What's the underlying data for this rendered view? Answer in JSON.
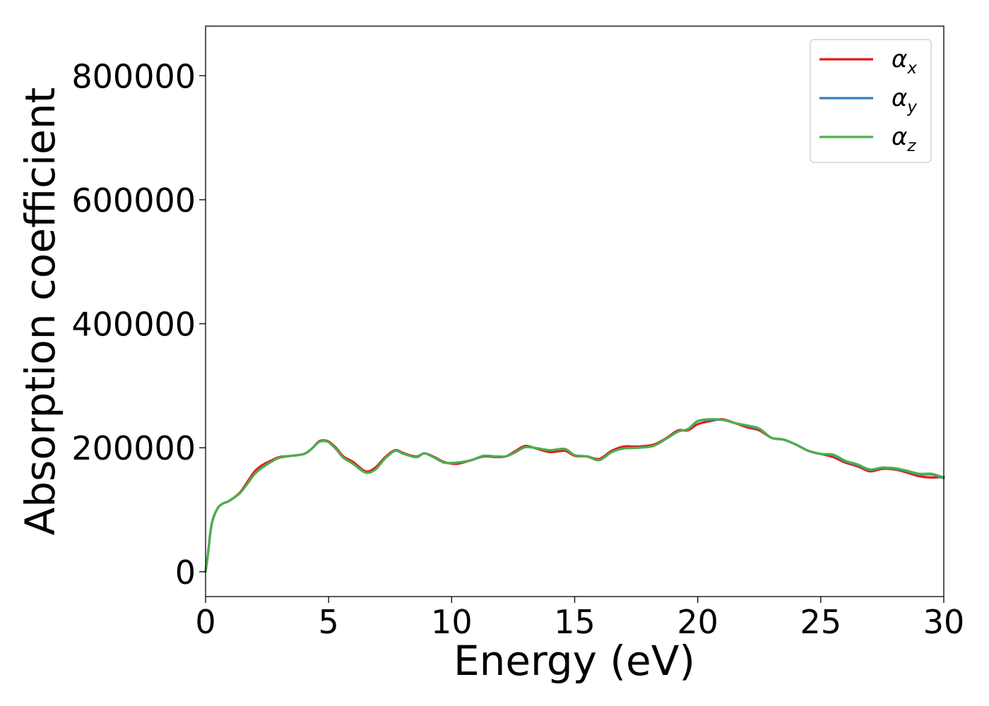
{
  "chart_data": {
    "type": "line",
    "title": "",
    "xlabel": "Energy (eV)",
    "ylabel": "Absorption coefficient",
    "xlim": [
      0,
      30
    ],
    "ylim": [
      -40000,
      880000
    ],
    "xticks": [
      0,
      5,
      10,
      15,
      20,
      25,
      30
    ],
    "yticks": [
      0,
      200000,
      400000,
      600000,
      800000
    ],
    "grid": false,
    "legend_position": "top-right",
    "series": [
      {
        "name": "α_x",
        "label_main": "α",
        "label_sub": "x",
        "color": "#e41a1c",
        "x": [
          0,
          0.1,
          0.2,
          0.3,
          0.5,
          0.7,
          0.9,
          1.1,
          1.4,
          1.7,
          2.0,
          2.3,
          2.7,
          3.0,
          3.5,
          4.0,
          4.3,
          4.6,
          4.8,
          5.0,
          5.3,
          5.6,
          6.0,
          6.5,
          6.9,
          7.3,
          7.7,
          8.0,
          8.3,
          8.6,
          8.9,
          9.3,
          9.7,
          10.2,
          10.8,
          11.3,
          11.8,
          12.2,
          12.6,
          13.0,
          13.5,
          14.0,
          14.6,
          15.0,
          15.5,
          16.0,
          16.5,
          17.0,
          17.6,
          18.2,
          18.7,
          19.2,
          19.6,
          20.0,
          20.5,
          21.0,
          21.5,
          22.0,
          22.5,
          23.0,
          23.5,
          24.0,
          24.5,
          25.0,
          25.5,
          26.0,
          26.5,
          27.0,
          27.5,
          28.0,
          28.5,
          29.0,
          29.5,
          30.0
        ],
        "y": [
          0,
          30000,
          65000,
          85000,
          103000,
          110000,
          113000,
          118000,
          128000,
          145000,
          162000,
          172000,
          180000,
          185000,
          187000,
          190000,
          198000,
          210000,
          212000,
          210000,
          200000,
          186000,
          177000,
          162000,
          168000,
          185000,
          196000,
          192000,
          188000,
          186000,
          191000,
          185000,
          177000,
          174000,
          180000,
          186000,
          185000,
          186000,
          195000,
          203000,
          198000,
          193000,
          195000,
          187000,
          186000,
          182000,
          195000,
          202000,
          202000,
          205000,
          215000,
          228000,
          228000,
          238000,
          243000,
          246000,
          240000,
          233000,
          228000,
          216000,
          213000,
          205000,
          195000,
          190000,
          185000,
          176000,
          170000,
          162000,
          166000,
          165000,
          160000,
          154000,
          152000,
          153000
        ]
      },
      {
        "name": "α_y",
        "label_main": "α",
        "label_sub": "y",
        "color": "#377eb8",
        "x": [
          0,
          0.1,
          0.2,
          0.3,
          0.5,
          0.7,
          0.9,
          1.1,
          1.4,
          1.7,
          2.0,
          2.3,
          2.7,
          3.0,
          3.5,
          4.0,
          4.3,
          4.6,
          4.8,
          5.0,
          5.3,
          5.6,
          6.0,
          6.5,
          6.9,
          7.3,
          7.7,
          8.0,
          8.3,
          8.6,
          8.9,
          9.3,
          9.7,
          10.2,
          10.8,
          11.3,
          11.8,
          12.2,
          12.6,
          13.0,
          13.5,
          14.0,
          14.6,
          15.0,
          15.5,
          16.0,
          16.5,
          17.0,
          17.6,
          18.2,
          18.7,
          19.2,
          19.6,
          20.0,
          20.5,
          21.0,
          21.5,
          22.0,
          22.5,
          23.0,
          23.5,
          24.0,
          24.5,
          25.0,
          25.5,
          26.0,
          26.5,
          27.0,
          27.5,
          28.0,
          28.5,
          29.0,
          29.5,
          30.0
        ],
        "y": [
          0,
          30000,
          65000,
          85000,
          103000,
          110000,
          113000,
          118000,
          127000,
          142000,
          158000,
          168000,
          178000,
          184000,
          187000,
          190000,
          198000,
          209000,
          211000,
          209000,
          198000,
          184000,
          174000,
          160000,
          165000,
          183000,
          195000,
          191000,
          187000,
          185000,
          191000,
          184000,
          176000,
          176000,
          180000,
          187000,
          186000,
          186000,
          193000,
          201000,
          199000,
          196000,
          198000,
          188000,
          186000,
          180000,
          193000,
          199000,
          200000,
          203000,
          214000,
          226000,
          230000,
          243000,
          245000,
          245000,
          240000,
          235000,
          230000,
          216000,
          213000,
          205000,
          195000,
          190000,
          188000,
          178000,
          172000,
          164000,
          168000,
          166000,
          162000,
          157000,
          157000,
          151000
        ]
      },
      {
        "name": "α_z",
        "label_main": "α",
        "label_sub": "z",
        "color": "#4daf4a",
        "x": [
          0,
          0.1,
          0.2,
          0.3,
          0.5,
          0.7,
          0.9,
          1.1,
          1.4,
          1.7,
          2.0,
          2.3,
          2.7,
          3.0,
          3.5,
          4.0,
          4.3,
          4.6,
          4.8,
          5.0,
          5.3,
          5.6,
          6.0,
          6.5,
          6.9,
          7.3,
          7.7,
          8.0,
          8.3,
          8.6,
          8.9,
          9.3,
          9.7,
          10.2,
          10.8,
          11.3,
          11.8,
          12.2,
          12.6,
          13.0,
          13.5,
          14.0,
          14.6,
          15.0,
          15.5,
          16.0,
          16.5,
          17.0,
          17.6,
          18.2,
          18.7,
          19.2,
          19.6,
          20.0,
          20.5,
          21.0,
          21.5,
          22.0,
          22.5,
          23.0,
          23.5,
          24.0,
          24.5,
          25.0,
          25.5,
          26.0,
          26.5,
          27.0,
          27.5,
          28.0,
          28.5,
          29.0,
          29.5,
          30.0
        ],
        "y": [
          0,
          30000,
          65000,
          85000,
          103000,
          110000,
          113000,
          118000,
          127000,
          142000,
          158000,
          168000,
          178000,
          184000,
          187000,
          190000,
          198000,
          209000,
          211000,
          209000,
          198000,
          184000,
          174000,
          160000,
          165000,
          183000,
          195000,
          191000,
          187000,
          185000,
          191000,
          184000,
          176000,
          176000,
          180000,
          187000,
          186000,
          186000,
          193000,
          201000,
          199000,
          196000,
          198000,
          188000,
          186000,
          180000,
          193000,
          199000,
          200000,
          203000,
          214000,
          226000,
          230000,
          243000,
          246000,
          245000,
          240000,
          236000,
          231000,
          216000,
          213000,
          205000,
          195000,
          190000,
          189000,
          179000,
          173000,
          165000,
          168000,
          167000,
          163000,
          158000,
          158000,
          152000
        ]
      }
    ]
  }
}
